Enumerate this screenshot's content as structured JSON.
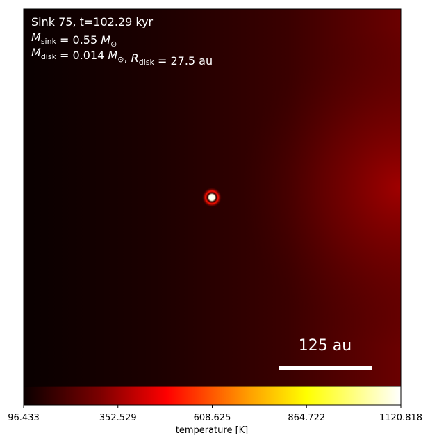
{
  "chart_data": {
    "type": "heatmap",
    "annotations": [
      [
        {
          "text": "Sink 75, t=102.29 kyr"
        }
      ],
      [
        {
          "text": "M",
          "sub": "sink"
        },
        {
          "text": " = 0.55 "
        },
        {
          "text": "M",
          "sub": "⊙"
        }
      ],
      [
        {
          "text": "M",
          "sub": "disk"
        },
        {
          "text": " = 0.014 "
        },
        {
          "text": "M",
          "sub": "⊙"
        },
        {
          "text": ", "
        },
        {
          "text": "R",
          "sub": "disk"
        },
        {
          "text": " = 27.5 au"
        }
      ]
    ],
    "scale_bar_label": "125 au",
    "colorbar": {
      "label": "temperature [K]",
      "lim": [
        96.433,
        1120.818
      ],
      "ticks": [
        96.433,
        352.529,
        608.625,
        864.722,
        1120.818
      ]
    }
  }
}
